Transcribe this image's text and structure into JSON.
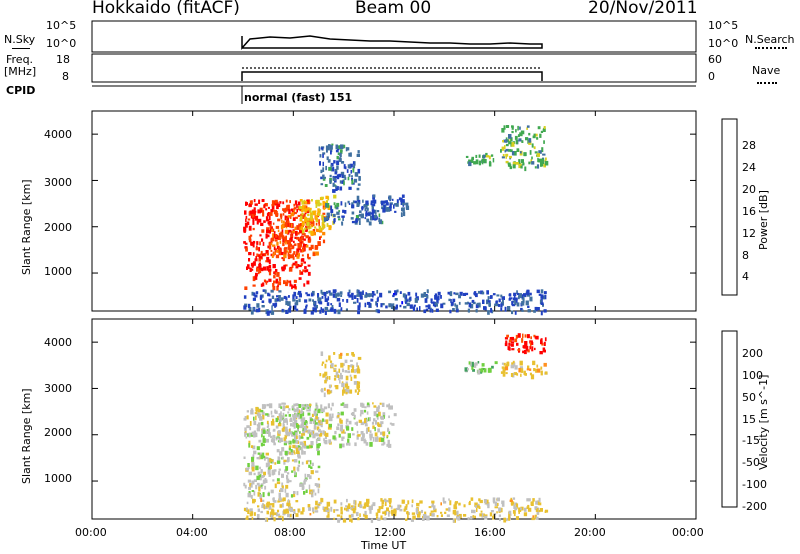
{
  "header": {
    "station": "Hokkaido (fitACF)",
    "beam": "Beam 00",
    "date": "20/Nov/2011"
  },
  "panels": {
    "nsky": {
      "label": "N.Sky",
      "y_ticks_left": [
        "10^5",
        "10^0"
      ],
      "y_ticks_right": [
        "10^5",
        "10^0"
      ],
      "right_label": "N.Search"
    },
    "freq": {
      "label_top": "Freq.",
      "label_unit": "[MHz]",
      "y_ticks_left": [
        "18",
        "8"
      ],
      "y_ticks_right": [
        "60",
        "0"
      ],
      "right_label": "Nave"
    },
    "cpid": {
      "label": "CPID",
      "mode": "normal (fast) 151"
    },
    "power": {
      "ylabel": "Slant Range [km]",
      "y_ticks": [
        "4000",
        "3000",
        "2000",
        "1000"
      ],
      "colorbar_label": "Power [dB]",
      "colorbar_ticks": [
        "28",
        "24",
        "20",
        "16",
        "12",
        "8",
        "4"
      ],
      "colorbar_colors": [
        "#ff0000",
        "#ff4000",
        "#ff8800",
        "#ffb000",
        "#d8d020",
        "#40a850",
        "#4070a0",
        "#2040c0",
        "#0000ff"
      ]
    },
    "velocity": {
      "ylabel": "Slant Range [km]",
      "y_ticks": [
        "4000",
        "3000",
        "2000",
        "1000"
      ],
      "colorbar_label": "Velocity [m s^-1]",
      "colorbar_ticks": [
        "200",
        "100",
        "50",
        "15",
        "-15",
        "-50",
        "-100",
        "-200"
      ],
      "colorbar_colors": [
        "#2030c0",
        "#3070b0",
        "#40a060",
        "#70d040",
        "#c0c0c0",
        "#e8c030",
        "#ff9020",
        "#ff5000",
        "#ff0000"
      ]
    }
  },
  "time_axis": {
    "xlabel": "Time UT",
    "ticks": [
      "00:00",
      "04:00",
      "08:00",
      "12:00",
      "16:00",
      "20:00",
      "00:00"
    ]
  },
  "chart_data": [
    {
      "type": "heatmap",
      "title": "Power",
      "xlabel": "Time UT",
      "ylabel": "Slant Range [km]",
      "xlim": [
        0,
        24
      ],
      "ylim": [
        180,
        4500
      ],
      "zlabel": "Power [dB]",
      "zlim": [
        0,
        30
      ],
      "blobs": [
        {
          "t0": 6.0,
          "t1": 8.6,
          "r0": 700,
          "r1": 2600,
          "z": 28
        },
        {
          "t0": 7.0,
          "t1": 9.2,
          "r0": 1400,
          "r1": 2500,
          "z": 24
        },
        {
          "t0": 8.2,
          "t1": 9.6,
          "r0": 1900,
          "r1": 2700,
          "z": 16
        },
        {
          "t0": 9.2,
          "t1": 11.5,
          "r0": 2100,
          "r1": 2600,
          "z": 8
        },
        {
          "t0": 10.5,
          "t1": 12.5,
          "r0": 2300,
          "r1": 2700,
          "z": 6
        },
        {
          "t0": 9.0,
          "t1": 10.6,
          "r0": 2800,
          "r1": 3800,
          "z": 8
        },
        {
          "t0": 14.8,
          "t1": 16.0,
          "r0": 3400,
          "r1": 3600,
          "z": 12
        },
        {
          "t0": 16.2,
          "t1": 18.0,
          "r0": 3300,
          "r1": 4200,
          "z": 12
        },
        {
          "t0": 6.0,
          "t1": 18.0,
          "r0": 180,
          "r1": 650,
          "z": 6
        }
      ]
    },
    {
      "type": "heatmap",
      "title": "Velocity",
      "xlabel": "Time UT",
      "ylabel": "Slant Range [km]",
      "xlim": [
        0,
        24
      ],
      "ylim": [
        180,
        4500
      ],
      "zlabel": "Velocity [m s^-1]",
      "zlim": [
        -250,
        250
      ],
      "blobs": [
        {
          "t0": 6.0,
          "t1": 9.0,
          "r0": 700,
          "r1": 2700,
          "z": 0
        },
        {
          "t0": 7.5,
          "t1": 12.0,
          "r0": 1800,
          "r1": 2700,
          "z": 0
        },
        {
          "t0": 9.0,
          "t1": 10.6,
          "r0": 2900,
          "r1": 3800,
          "z": -40
        },
        {
          "t0": 14.8,
          "t1": 16.0,
          "r0": 3400,
          "r1": 3600,
          "z": 60
        },
        {
          "t0": 16.4,
          "t1": 18.0,
          "r0": 3800,
          "r1": 4200,
          "z": -220
        },
        {
          "t0": 16.2,
          "t1": 18.0,
          "r0": 3300,
          "r1": 3600,
          "z": -60
        },
        {
          "t0": 6.0,
          "t1": 18.0,
          "r0": 180,
          "r1": 650,
          "z": -40
        }
      ]
    }
  ]
}
